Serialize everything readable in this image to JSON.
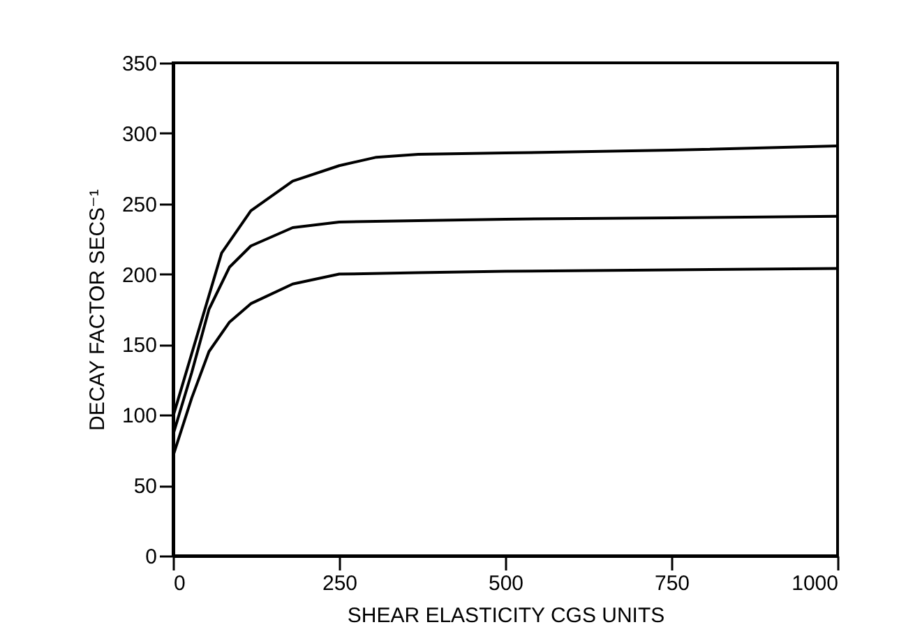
{
  "chart_data": {
    "type": "line",
    "xlabel": "SHEAR ELASTICITY CGS UNITS",
    "ylabel": "DECAY FACTOR SECS⁻¹",
    "xlim": [
      0,
      1000
    ],
    "xticks": [
      0,
      250,
      500,
      750,
      1000
    ],
    "ylim": [
      0,
      350
    ],
    "yticks": [
      0,
      50,
      100,
      150,
      200,
      250,
      300,
      350
    ],
    "grid": false,
    "marker": "none",
    "line_style": "solid",
    "series": [
      {
        "color": "#000000",
        "x": [
          0,
          73,
          117,
          180,
          250,
          306,
          369,
          500,
          750,
          1000
        ],
        "values": [
          99,
          215,
          245,
          266,
          277,
          283,
          285,
          286,
          288,
          291
        ]
      },
      {
        "color": "#000000",
        "x": [
          0,
          28,
          54,
          85,
          117,
          180,
          250,
          369,
          500,
          750,
          1000
        ],
        "values": [
          86,
          130,
          175,
          205,
          220,
          233,
          237,
          238,
          239,
          240,
          241
        ]
      },
      {
        "color": "#000000",
        "x": [
          0,
          28,
          54,
          85,
          117,
          180,
          250,
          369,
          500,
          750,
          1000
        ],
        "values": [
          71,
          112,
          145,
          166,
          179,
          193,
          200,
          201,
          202,
          203,
          204
        ]
      }
    ]
  }
}
